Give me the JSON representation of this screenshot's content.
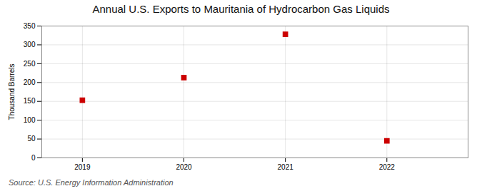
{
  "chart_data": {
    "type": "scatter",
    "title": "Annual U.S. Exports to Mauritania of Hydrocarbon Gas Liquids",
    "ylabel": "Thousand Barrels",
    "annotations": [
      "Source: U.S. Energy Information Administration"
    ],
    "x": [
      2019,
      2020,
      2021,
      2022
    ],
    "values": [
      153,
      213,
      328,
      45
    ],
    "color": "#cc0000",
    "marker": "square",
    "xlim": [
      2018.6,
      2022.8
    ],
    "xticks": [
      2019,
      2020,
      2021,
      2022
    ],
    "ylim": [
      0,
      350
    ],
    "yticks": [
      0,
      50,
      100,
      150,
      200,
      250,
      300,
      350
    ],
    "grid": true
  }
}
